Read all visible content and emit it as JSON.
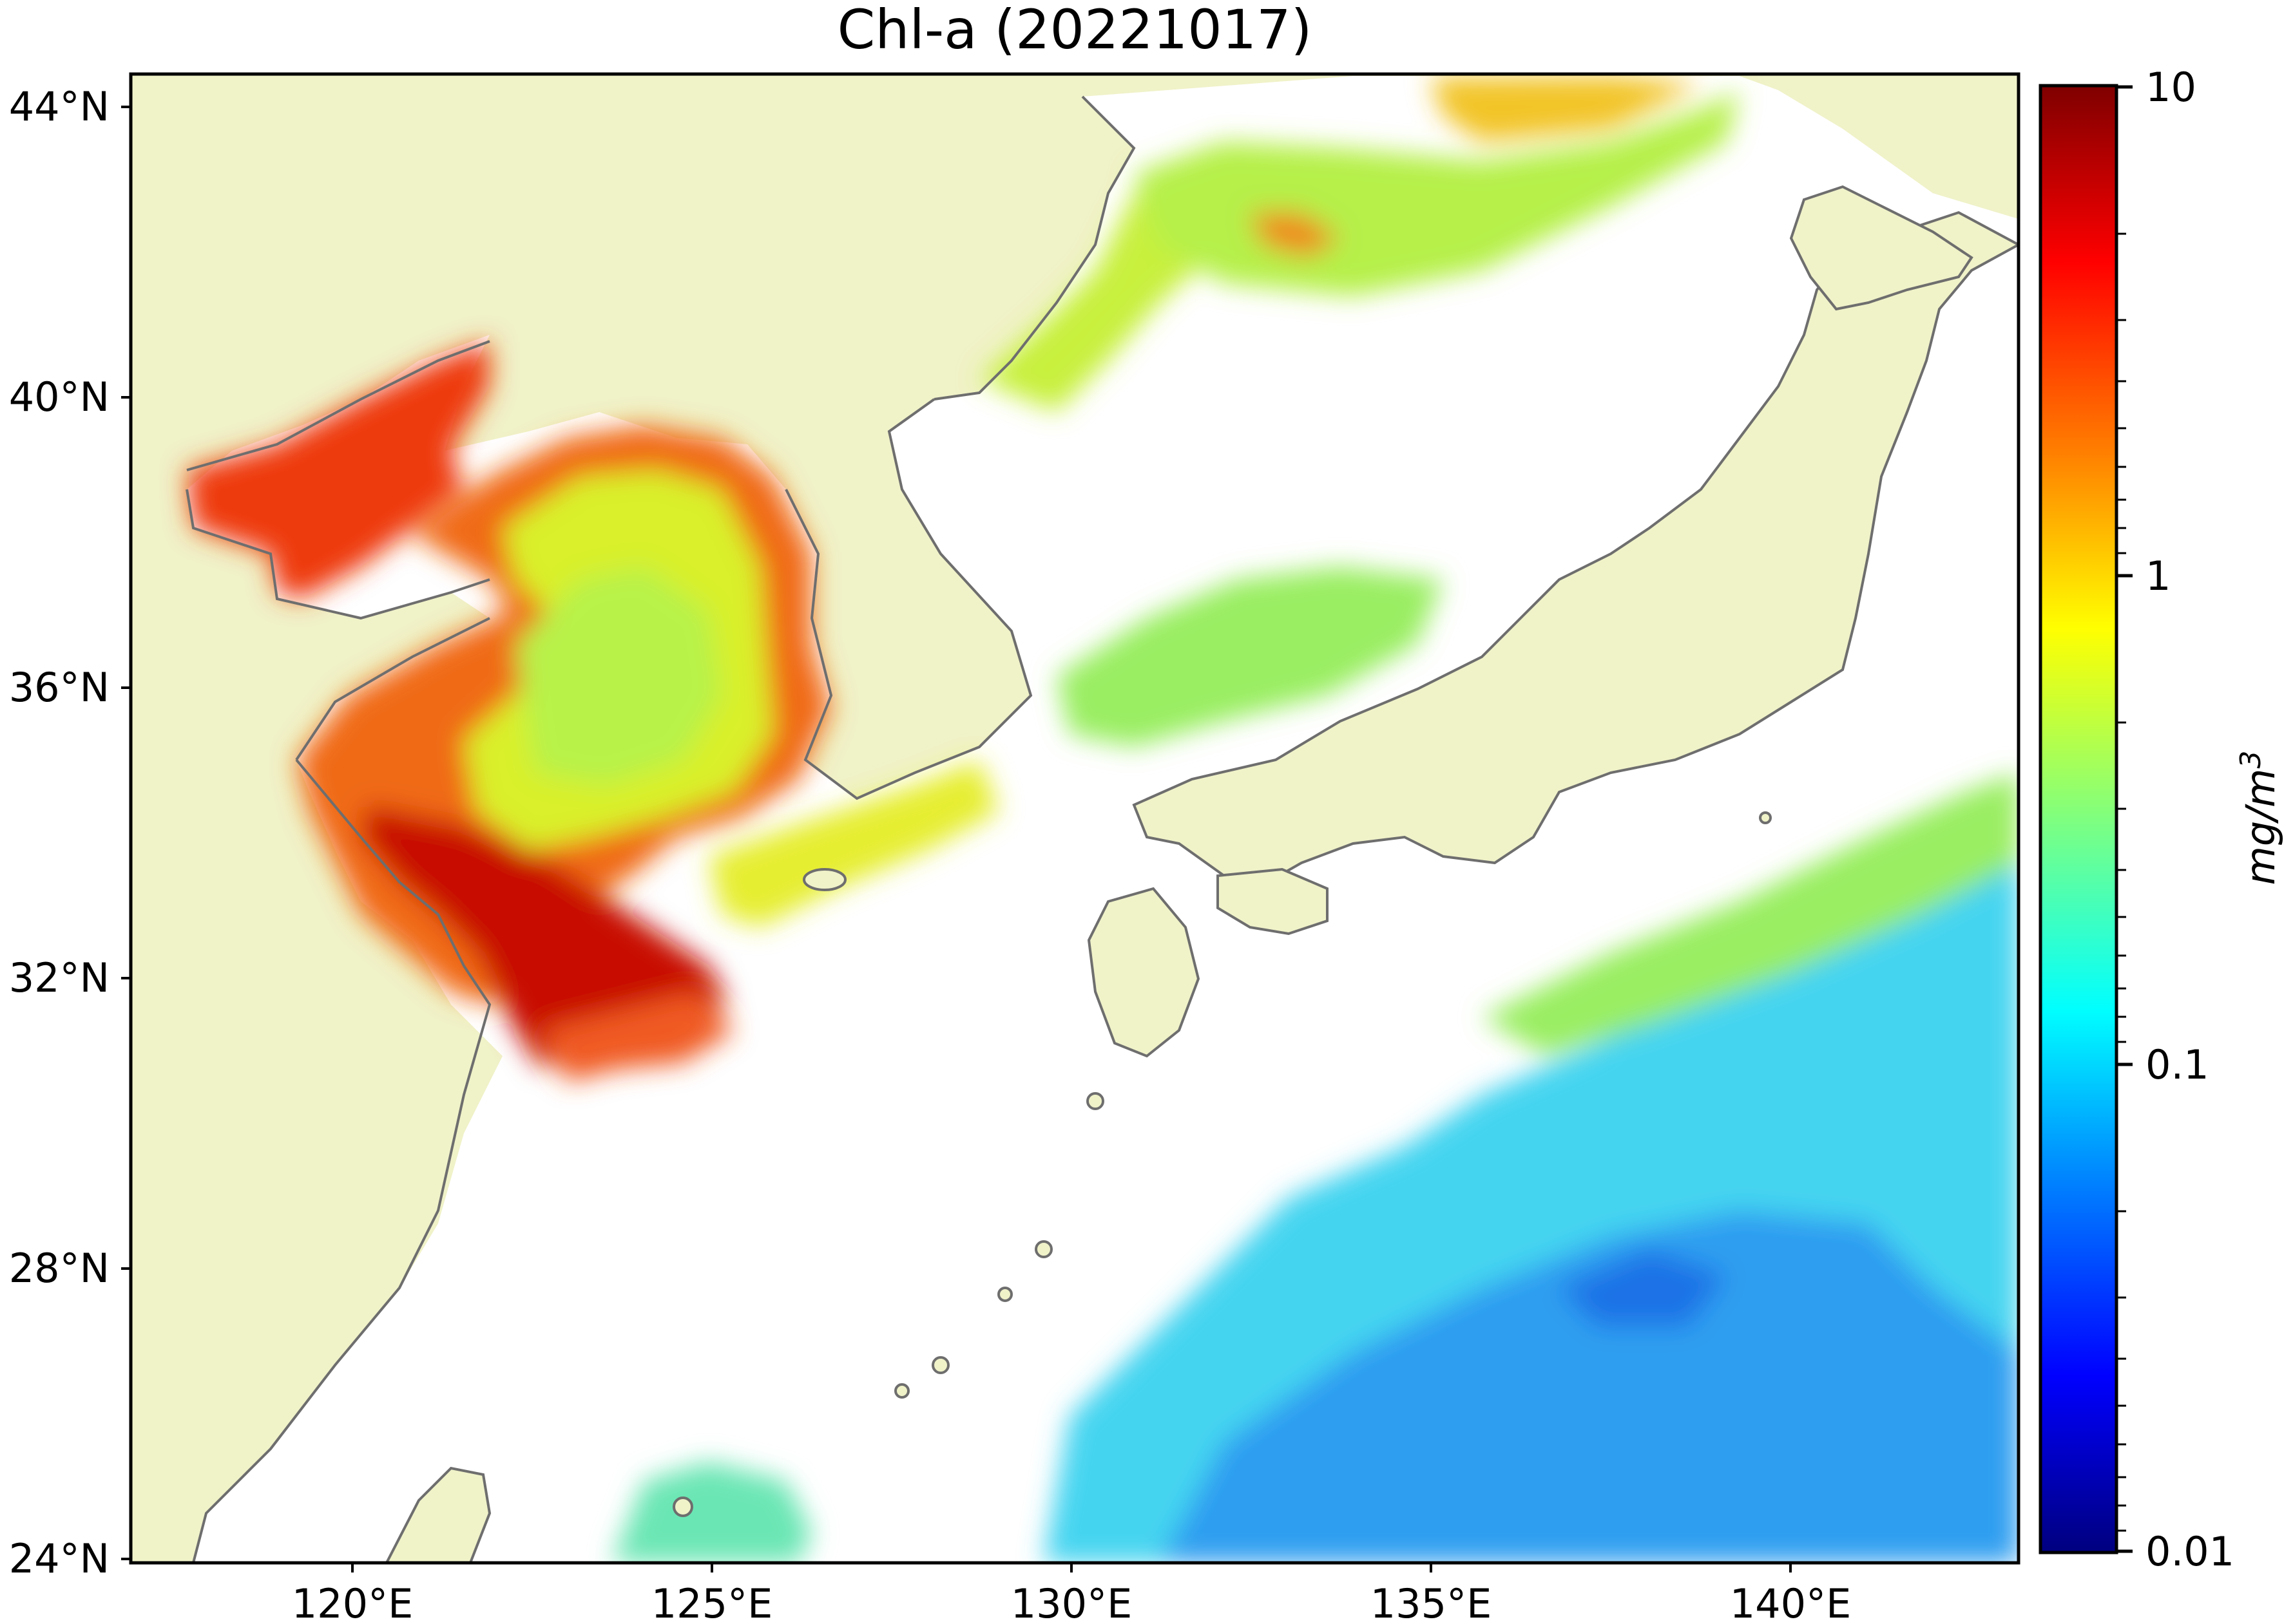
{
  "title": "Chl-a (20221017)",
  "map": {
    "lat_ticks": [
      "44°N",
      "40°N",
      "36°N",
      "32°N",
      "28°N",
      "24°N"
    ],
    "lon_ticks": [
      "120°E",
      "125°E",
      "130°E",
      "135°E",
      "140°E"
    ],
    "land_color": "#f0f2c8",
    "no_data_color": "#ffffff",
    "coastline_color": "#6e6e6e"
  },
  "colorbar": {
    "scale": "log",
    "colormap": "jet",
    "tick_labels": [
      "10",
      "1",
      "0.1",
      "0.01"
    ],
    "unit_label": "mg/m",
    "unit_exponent": "3",
    "colors": [
      "#7f0000",
      "#ff0000",
      "#ff7f00",
      "#ffff00",
      "#7fff7f",
      "#00ffff",
      "#007fff",
      "#0000ff",
      "#00007f"
    ]
  }
}
